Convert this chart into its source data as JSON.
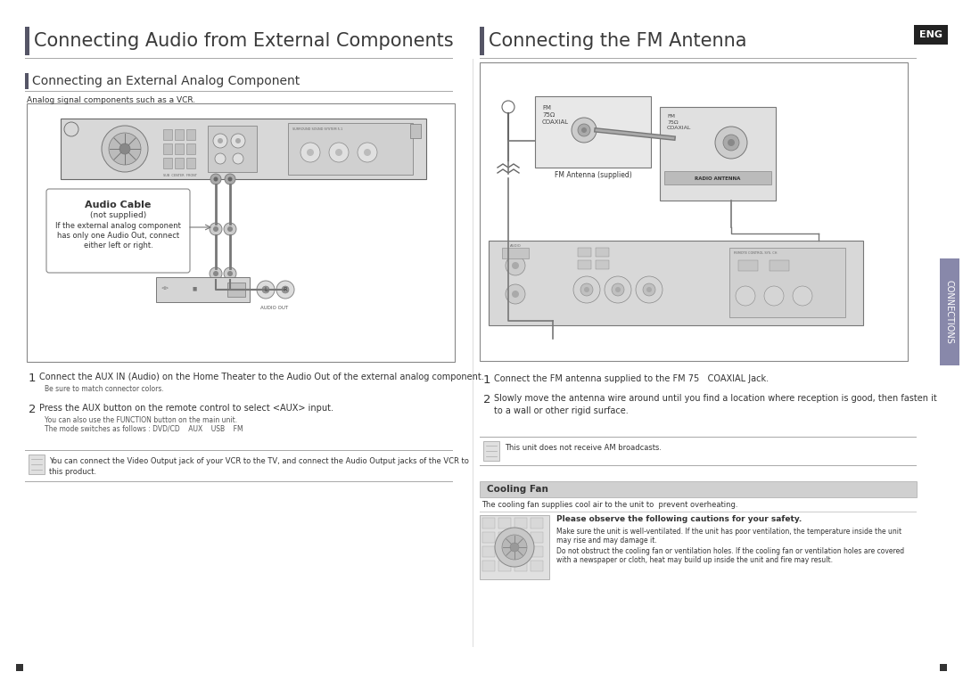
{
  "bg_color": "#ffffff",
  "left_title": "Connecting Audio from External Components",
  "right_title": "Connecting the FM Antenna",
  "eng_badge": "ENG",
  "connections_label": "CONNECTIONS",
  "left_subtitle": "Connecting an External Analog Component",
  "left_desc": "Analog signal components such as a VCR.",
  "audio_cable_title": "Audio Cable",
  "audio_cable_line2": "(not supplied)",
  "audio_cable_line3": "If the external analog component",
  "audio_cable_line4": "has only one Audio Out, connect",
  "audio_cable_line5": "either left or right.",
  "step1_left": "Connect the AUX IN (Audio) on the Home Theater to the Audio Out of the external analog component.",
  "step1_sub_left": "Be sure to match connector colors.",
  "step2_left": "Press the AUX button on the remote control to select <AUX> input.",
  "step2_sub1_left": "You can also use the FUNCTION button on the main unit.",
  "step2_sub2_left": "The mode switches as follows : DVD/CD    AUX    USB    FM",
  "note_left": "You can connect the Video Output jack of your VCR to the TV, and connect the Audio Output jacks of the VCR to\nthis product.",
  "step1_right": "Connect the FM antenna supplied to the FM 75   COAXIAL Jack.",
  "step2_right": "Slowly move the antenna wire around until you find a location where reception is good, then fasten it\nto a wall or other rigid surface.",
  "note_right": "This unit does not receive AM broadcasts.",
  "cooling_fan_title": "Cooling Fan",
  "cooling_fan_desc": "The cooling fan supplies cool air to the unit to  prevent overheating.",
  "cooling_safety_title": "Please observe the following cautions for your safety.",
  "cooling_line1": "Make sure the unit is well-ventilated. If the unit has poor ventilation, the temperature inside the unit",
  "cooling_line2": "may rise and may damage it.",
  "cooling_line3": "Do not obstruct the cooling fan or ventilation holes. If the cooling fan or ventilation holes are covered",
  "cooling_line4": "with a newspaper or cloth, heat may build up inside the unit and fire may result.",
  "title_bar_color": "#3a3a5c",
  "connections_bg": "#8888aa",
  "text_color": "#333333",
  "small_text_color": "#555555",
  "cooling_header_bg": "#d0d0d0",
  "line_color": "#999999",
  "diagram_bg": "#f0f0f0",
  "panel_color": "#e0e0e0",
  "panel_dark": "#aaaaaa"
}
